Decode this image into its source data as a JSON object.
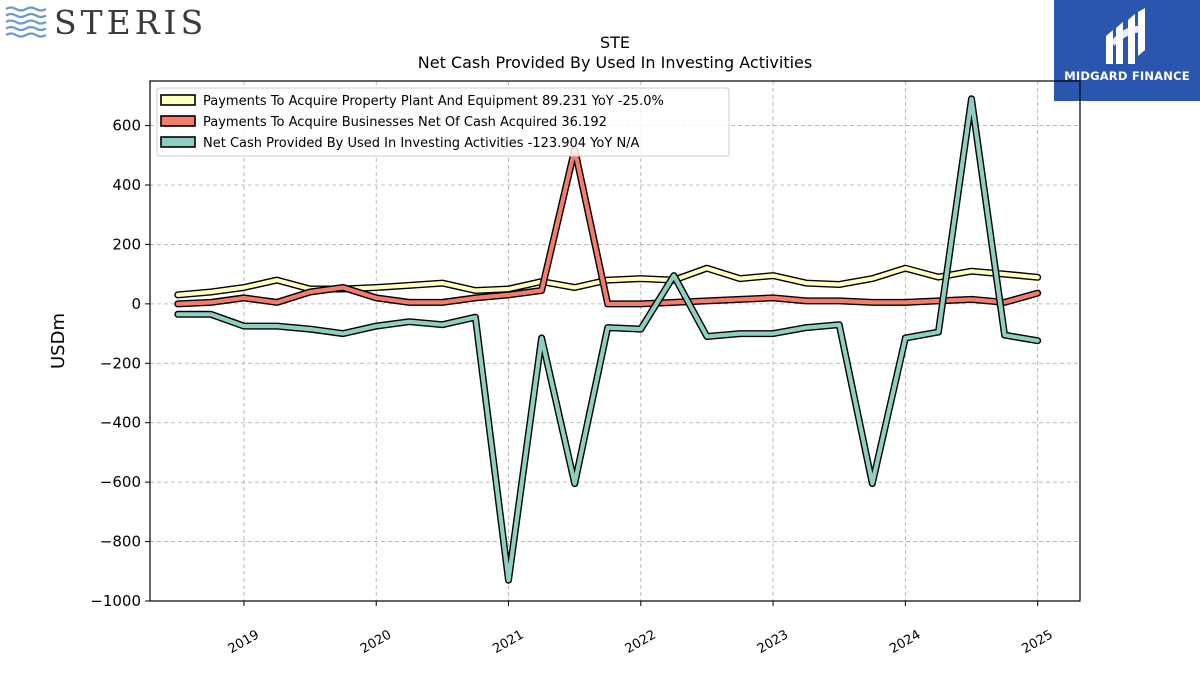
{
  "header": {
    "company_logo_text": "STERIS",
    "badge_text": "MIDGARD FINANCE"
  },
  "colors": {
    "ppe": "#ffffc0",
    "acq": "#f47c6b",
    "net": "#8ecfc1",
    "badge_bg": "#2a56b0",
    "logo_waves": "#6b9ccc"
  },
  "chart_data": {
    "type": "line",
    "title": "STE",
    "subtitle": "Net Cash Provided By Used In Investing Activities",
    "ylabel": "USDm",
    "xlabel": "",
    "ylim": [
      -1000,
      750
    ],
    "xlim": [
      2018.29,
      2025.32
    ],
    "yticks": [
      -1000,
      -800,
      -600,
      -400,
      -200,
      0,
      200,
      400,
      600
    ],
    "ytick_labels": [
      "−1000",
      "−800",
      "−600",
      "−400",
      "−200",
      "0",
      "200",
      "400",
      "600"
    ],
    "xticks": [
      2019,
      2020,
      2021,
      2022,
      2023,
      2024,
      2025
    ],
    "xtick_labels": [
      "2019",
      "2020",
      "2021",
      "2022",
      "2023",
      "2024",
      "2025"
    ],
    "grid": true,
    "legend_position": "top-left",
    "x": [
      2018.5,
      2018.75,
      2019.0,
      2019.25,
      2019.5,
      2019.75,
      2020.0,
      2020.25,
      2020.5,
      2020.75,
      2021.0,
      2021.25,
      2021.5,
      2021.75,
      2022.0,
      2022.25,
      2022.5,
      2022.75,
      2023.0,
      2023.25,
      2023.5,
      2023.75,
      2024.0,
      2024.25,
      2024.5,
      2024.75,
      2025.0
    ],
    "series": [
      {
        "name": "Payments To Acquire Property Plant And Equipment",
        "legend_label": "Payments To Acquire Property Plant And Equipment  89.231 YoY -25.0%",
        "color_key": "ppe",
        "values": [
          30,
          40,
          55,
          80,
          50,
          50,
          55,
          62,
          70,
          45,
          50,
          75,
          55,
          80,
          85,
          80,
          120,
          85,
          95,
          70,
          65,
          85,
          120,
          90,
          110,
          100,
          89.231
        ]
      },
      {
        "name": "Payments To Acquire Businesses Net Of Cash Acquired",
        "legend_label": "Payments To Acquire Businesses Net Of Cash Acquired  36.192",
        "color_key": "acq",
        "values": [
          0,
          5,
          20,
          5,
          40,
          55,
          20,
          5,
          5,
          20,
          30,
          45,
          520,
          0,
          0,
          5,
          10,
          15,
          20,
          10,
          10,
          5,
          5,
          10,
          15,
          5,
          36.192
        ]
      },
      {
        "name": "Net Cash Provided By Used In Investing Activities",
        "legend_label": "Net Cash Provided By Used In Investing Activities  -123.904 YoY N/A",
        "color_key": "net",
        "values": [
          -35,
          -35,
          -75,
          -75,
          -85,
          -100,
          -75,
          -60,
          -70,
          -45,
          -930,
          -115,
          -605,
          -80,
          -85,
          95,
          -110,
          -100,
          -100,
          -80,
          -70,
          -605,
          -115,
          -95,
          690,
          -105,
          -123.904
        ]
      }
    ]
  }
}
